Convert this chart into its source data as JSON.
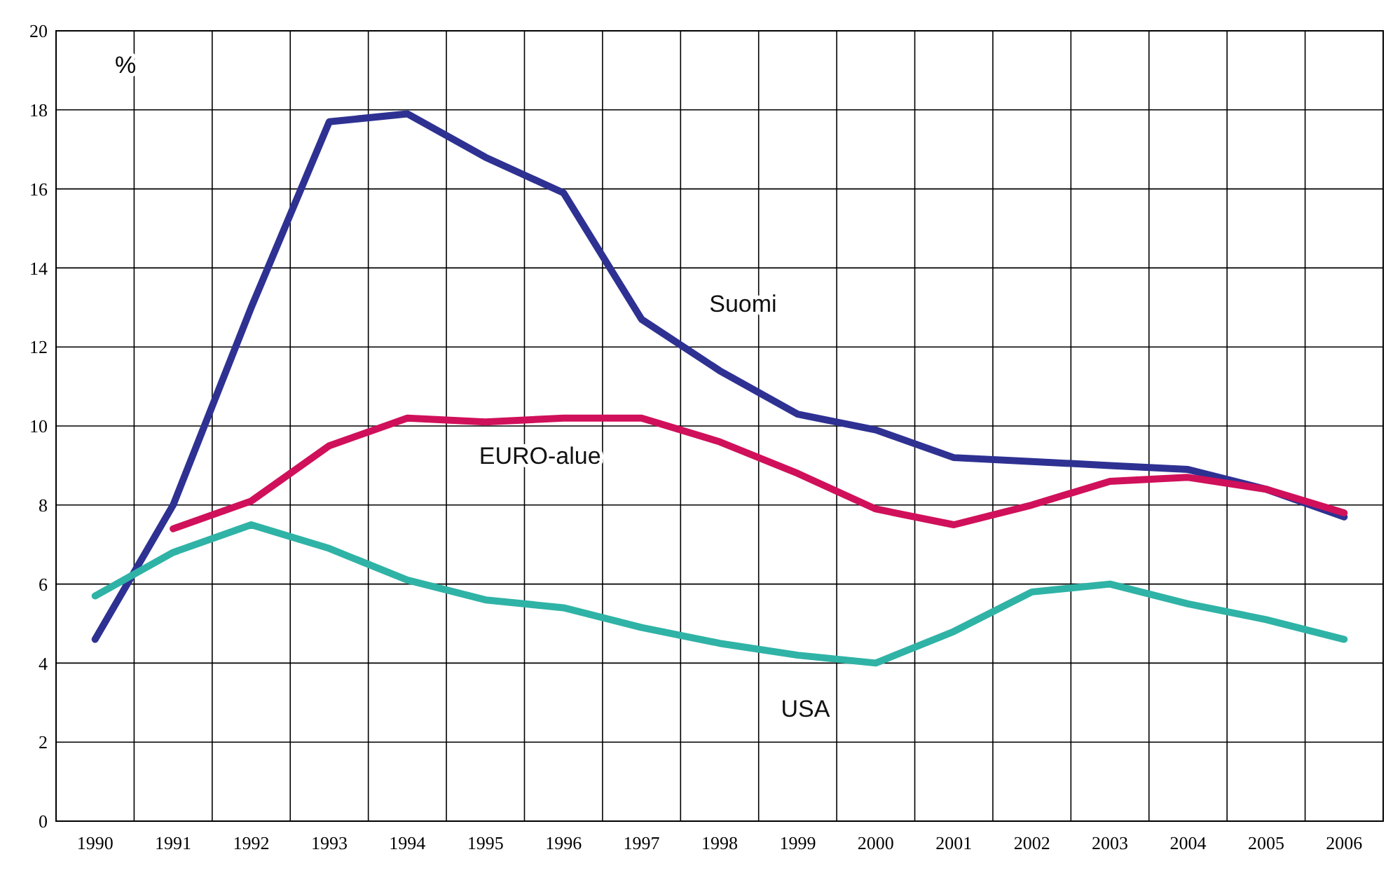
{
  "chart_data": {
    "type": "line",
    "ylabel": "%",
    "categories": [
      "1990",
      "1991",
      "1992",
      "1993",
      "1994",
      "1995",
      "1996",
      "1997",
      "1998",
      "1999",
      "2000",
      "2001",
      "2002",
      "2003",
      "2004",
      "2005",
      "2006"
    ],
    "ylim": [
      0,
      20
    ],
    "yticks": [
      0,
      2,
      4,
      6,
      8,
      10,
      12,
      14,
      16,
      18,
      20
    ],
    "grid": true,
    "marker": "none",
    "series": [
      {
        "name": "Suomi",
        "color": "#2e3192",
        "values": [
          4.6,
          8.0,
          13.0,
          17.7,
          17.9,
          16.8,
          15.9,
          12.7,
          11.4,
          10.3,
          9.9,
          9.2,
          9.1,
          9.0,
          8.9,
          8.4,
          7.7
        ]
      },
      {
        "name": "EURO-alue",
        "color": "#d0105a",
        "values": [
          null,
          7.4,
          8.1,
          9.5,
          10.2,
          10.1,
          10.2,
          10.2,
          9.6,
          8.8,
          7.9,
          7.5,
          8.0,
          8.6,
          8.7,
          8.4,
          7.8
        ]
      },
      {
        "name": "USA",
        "color": "#2fb3a6",
        "values": [
          5.7,
          6.8,
          7.5,
          6.9,
          6.1,
          5.6,
          5.4,
          4.9,
          4.5,
          4.2,
          4.0,
          4.8,
          5.8,
          6.0,
          5.5,
          5.1,
          4.6
        ]
      }
    ]
  }
}
